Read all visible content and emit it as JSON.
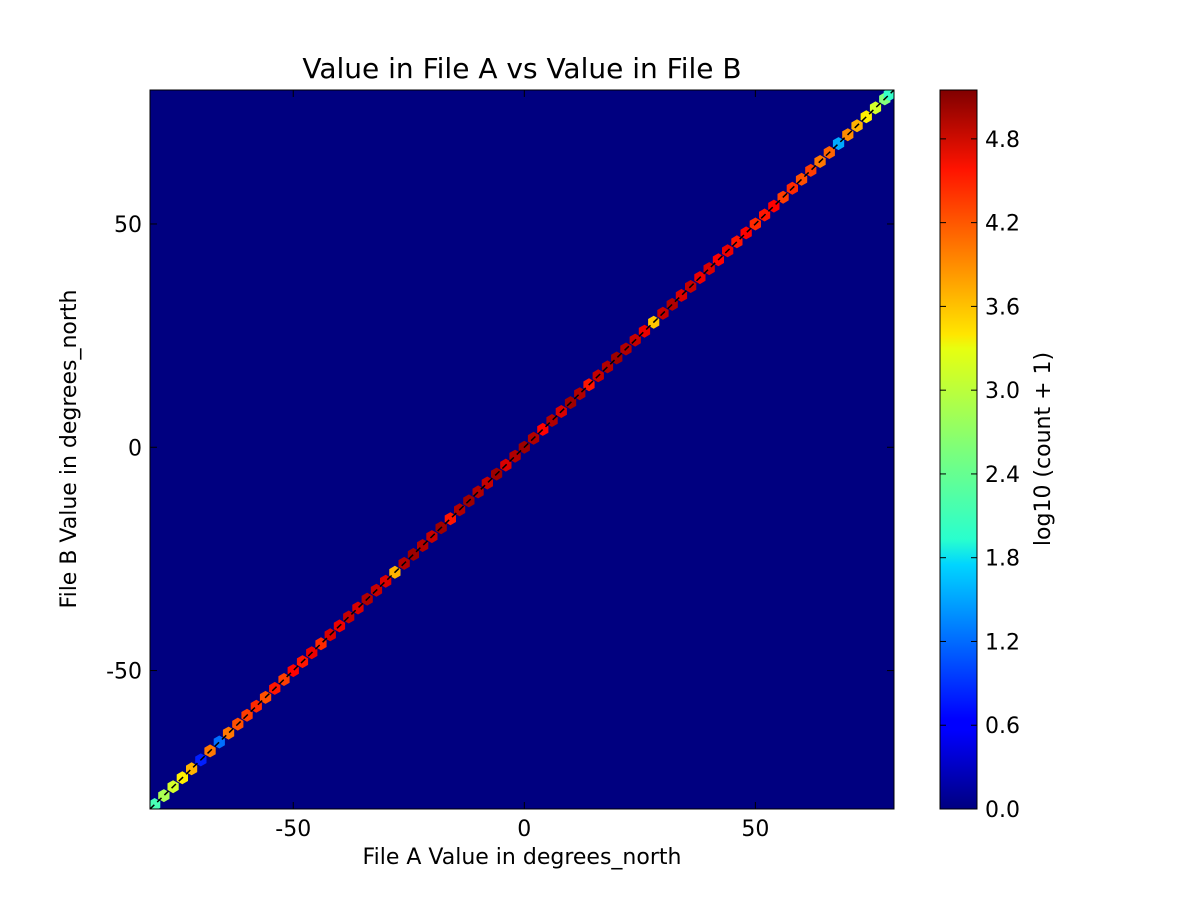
{
  "chart_data": {
    "type": "heatmap",
    "subtype": "hexbin density with identity line",
    "title": "Value in File A vs Value in File B",
    "xlabel": "File A Value in degrees_north",
    "ylabel": "File B Value in degrees_north",
    "xlim": [
      -81,
      80
    ],
    "ylim": [
      -81,
      80
    ],
    "xticks": [
      -50,
      0,
      50
    ],
    "yticks": [
      -50,
      0,
      50
    ],
    "background_color": "#000080",
    "colormap": "jet",
    "colorbar": {
      "label": "log10 (count + 1)",
      "range": [
        0.0,
        5.15
      ],
      "ticks": [
        "0.0",
        "0.6",
        "1.2",
        "1.8",
        "2.4",
        "3.0",
        "3.6",
        "4.2",
        "4.8"
      ]
    },
    "reference_line": {
      "from": [
        -81,
        -81
      ],
      "to": [
        80,
        80
      ],
      "color": "#000000",
      "style": "dashed"
    },
    "bins": {
      "x": [
        -80,
        -78,
        -76,
        -74,
        -72,
        -70,
        -68,
        -66,
        -64,
        -62,
        -60,
        -58,
        -56,
        -54,
        -52,
        -50,
        -48,
        -46,
        -44,
        -42,
        -40,
        -38,
        -36,
        -34,
        -32,
        -30,
        -28,
        -26,
        -24,
        -22,
        -20,
        -18,
        -16,
        -14,
        -12,
        -10,
        -8,
        -6,
        -4,
        -2,
        0,
        2,
        4,
        6,
        8,
        10,
        12,
        14,
        16,
        18,
        20,
        22,
        24,
        26,
        28,
        30,
        32,
        34,
        36,
        38,
        40,
        42,
        44,
        46,
        48,
        50,
        52,
        54,
        56,
        58,
        60,
        62,
        64,
        66,
        68,
        70,
        72,
        74,
        76,
        78,
        79
      ],
      "log_count": [
        2.3,
        2.8,
        3.0,
        3.3,
        3.6,
        0.8,
        3.9,
        1.2,
        3.9,
        4.1,
        4.2,
        4.3,
        4.1,
        4.4,
        4.2,
        4.5,
        4.4,
        4.6,
        4.3,
        4.7,
        4.6,
        4.8,
        4.7,
        4.9,
        4.8,
        4.7,
        3.6,
        4.9,
        5.0,
        4.9,
        4.8,
        5.0,
        4.4,
        4.9,
        5.0,
        4.9,
        4.8,
        5.0,
        4.7,
        4.9,
        5.0,
        4.9,
        4.5,
        4.9,
        4.7,
        5.0,
        4.9,
        4.4,
        4.8,
        4.9,
        5.0,
        4.9,
        4.8,
        4.6,
        3.5,
        4.8,
        4.9,
        4.7,
        4.8,
        4.6,
        4.7,
        4.5,
        4.6,
        4.4,
        4.5,
        4.3,
        4.4,
        4.5,
        4.2,
        4.3,
        4.1,
        4.2,
        3.9,
        4.0,
        1.5,
        3.8,
        3.6,
        3.3,
        3.0,
        2.6,
        2.2
      ]
    }
  }
}
